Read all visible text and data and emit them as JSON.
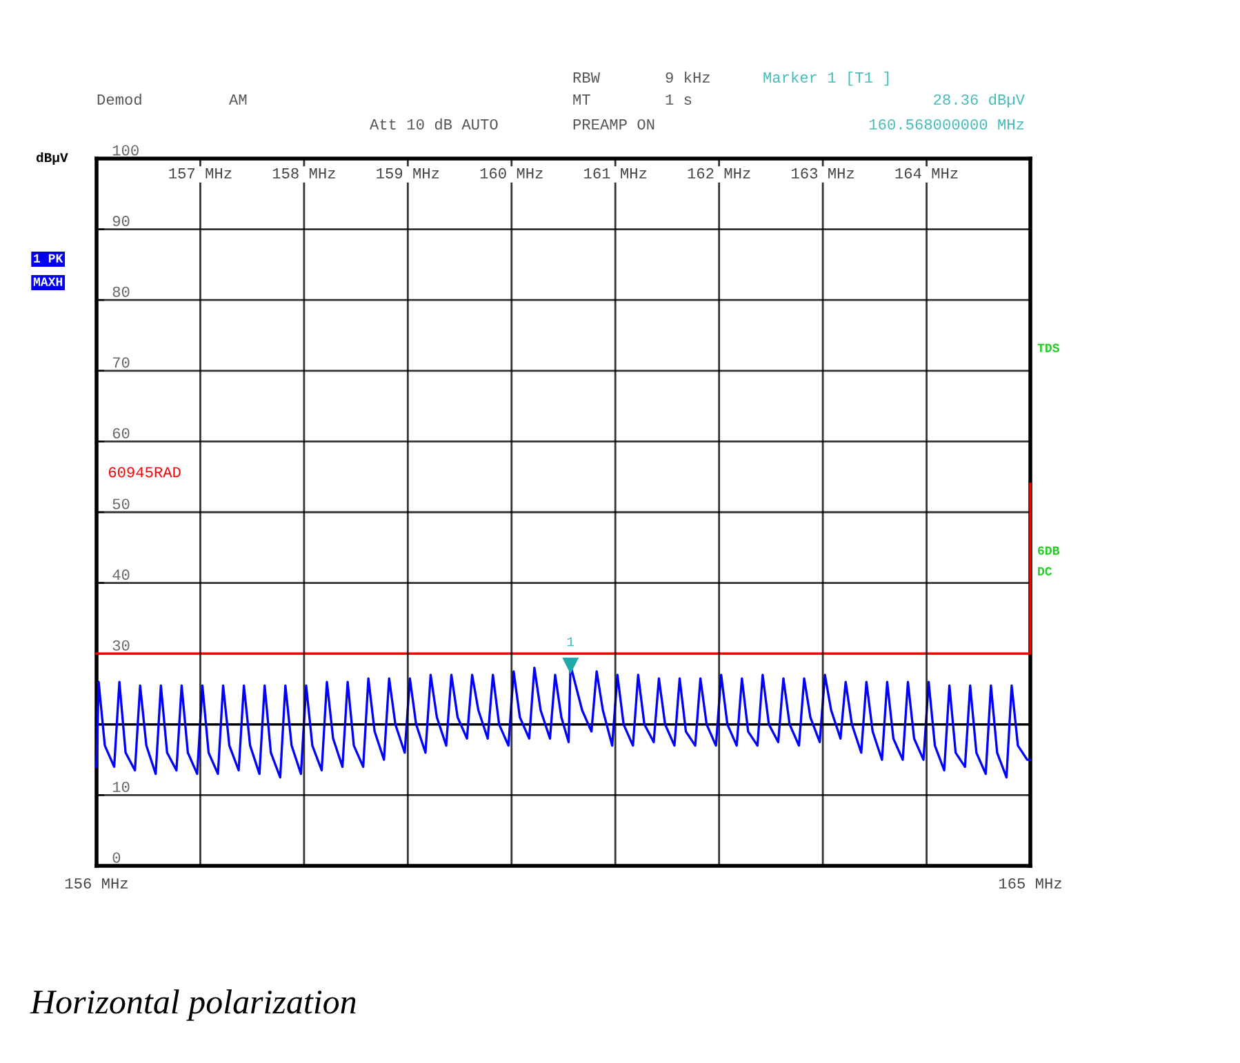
{
  "chart_data": {
    "type": "line",
    "title": "Horizontal polarization",
    "ylabel": "dBµV",
    "xlim": [
      156,
      165
    ],
    "ylim": [
      0,
      100
    ],
    "xticks": [
      {
        "value": 156,
        "label": "156 MHz"
      },
      {
        "value": 165,
        "label": "165 MHz"
      }
    ],
    "x2lim": [
      156,
      165
    ],
    "x2ticks": [
      {
        "value": 157,
        "label": "157 MHz"
      },
      {
        "value": 158,
        "label": "158 MHz"
      },
      {
        "value": 159,
        "label": "159 MHz"
      },
      {
        "value": 160,
        "label": "160 MHz"
      },
      {
        "value": 161,
        "label": "161 MHz"
      },
      {
        "value": 162,
        "label": "162 MHz"
      },
      {
        "value": 163,
        "label": "163 MHz"
      },
      {
        "value": 164,
        "label": "164 MHz"
      }
    ],
    "yticks": [
      0,
      10,
      {
        "value": 20,
        "label": null
      },
      30,
      40,
      50,
      60,
      70,
      80,
      90,
      100
    ],
    "grid": true,
    "legend": false,
    "marker": "none",
    "line_style": "solid",
    "ref_lines": [
      {
        "axis": "y",
        "value": 20,
        "color": "#000000"
      }
    ],
    "series": [
      {
        "name": "60945RAD",
        "color": "#ff0000",
        "x": [
          156,
          165,
          165
        ],
        "values": [
          30,
          30,
          54
        ]
      },
      {
        "color": "#0000ff",
        "x": [
          156.0,
          156.02,
          156.08,
          156.17,
          156.22,
          156.28,
          156.37,
          156.42,
          156.48,
          156.57,
          156.62,
          156.68,
          156.77,
          156.82,
          156.88,
          156.97,
          157.02,
          157.08,
          157.17,
          157.22,
          157.28,
          157.37,
          157.42,
          157.48,
          157.57,
          157.62,
          157.68,
          157.77,
          157.82,
          157.88,
          157.97,
          158.02,
          158.08,
          158.17,
          158.22,
          158.28,
          158.37,
          158.42,
          158.48,
          158.57,
          158.62,
          158.68,
          158.77,
          158.82,
          158.88,
          158.97,
          159.02,
          159.08,
          159.17,
          159.22,
          159.28,
          159.37,
          159.42,
          159.48,
          159.57,
          159.62,
          159.68,
          159.77,
          159.82,
          159.88,
          159.97,
          160.02,
          160.08,
          160.17,
          160.22,
          160.28,
          160.37,
          160.42,
          160.48,
          160.55,
          160.568,
          160.68,
          160.77,
          160.82,
          160.88,
          160.97,
          161.02,
          161.08,
          161.17,
          161.22,
          161.28,
          161.37,
          161.42,
          161.48,
          161.57,
          161.62,
          161.68,
          161.77,
          161.82,
          161.88,
          161.97,
          162.02,
          162.08,
          162.17,
          162.22,
          162.28,
          162.37,
          162.42,
          162.48,
          162.57,
          162.62,
          162.68,
          162.77,
          162.82,
          162.88,
          162.97,
          163.02,
          163.08,
          163.17,
          163.22,
          163.28,
          163.37,
          163.42,
          163.48,
          163.57,
          163.62,
          163.68,
          163.77,
          163.82,
          163.88,
          163.97,
          164.02,
          164.08,
          164.17,
          164.22,
          164.28,
          164.37,
          164.42,
          164.48,
          164.57,
          164.62,
          164.68,
          164.77,
          164.82,
          164.88,
          164.97,
          165.0
        ],
        "values": [
          14,
          26,
          17,
          14,
          26,
          16,
          13.5,
          25.5,
          17,
          13,
          25.5,
          16,
          13.5,
          25.5,
          16,
          13,
          25.5,
          16,
          13,
          25.5,
          17,
          13.5,
          25.5,
          17,
          13,
          25.5,
          16,
          12.5,
          25.5,
          17,
          13,
          25.5,
          17,
          13.5,
          26,
          18,
          14,
          26,
          17,
          14,
          26.5,
          19,
          15,
          26.5,
          20,
          16,
          26.5,
          20,
          16,
          27,
          21,
          17,
          27,
          21,
          18,
          27,
          22,
          18,
          27,
          20,
          17,
          27.5,
          21,
          18,
          28,
          22,
          18,
          27,
          21,
          17.5,
          28.36,
          22,
          19,
          27.5,
          22,
          17,
          27,
          20,
          17,
          27,
          20,
          17.5,
          26.5,
          20,
          17,
          26.5,
          19,
          17,
          26.5,
          20,
          17,
          27,
          20,
          17,
          26.5,
          19,
          17,
          27,
          20,
          17.5,
          26.5,
          20,
          17,
          26.5,
          21,
          17.5,
          27,
          22,
          18,
          26,
          20,
          16,
          26,
          19,
          15,
          26,
          18,
          15,
          26,
          18,
          15,
          26,
          17,
          13.5,
          25.5,
          16,
          14,
          25.5,
          16,
          13,
          25.5,
          16,
          12.5,
          25.5,
          17,
          15,
          15
        ]
      }
    ],
    "annotations": [
      {
        "text": "1",
        "x": 160.568,
        "y": 28.36
      },
      "Demod",
      "AM",
      "RBW",
      "9 kHz",
      "MT",
      "1 s",
      "Att 10 dB AUTO",
      "PREAMP ON",
      "Marker 1 [T1 ]",
      "28.36 dBµV",
      "160.568000000 MHz",
      "1 PK",
      "MAXH",
      "TDS",
      "6DB",
      "DC"
    ]
  }
}
